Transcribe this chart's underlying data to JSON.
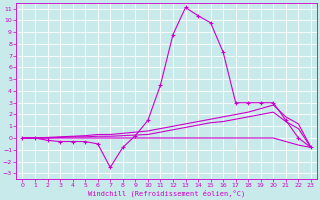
{
  "xlabel": "Windchill (Refroidissement éolien,°C)",
  "bg_color": "#c8eaea",
  "grid_color": "#ffffff",
  "line_color": "#cc00cc",
  "xlim": [
    -0.5,
    23.5
  ],
  "ylim": [
    -3.5,
    11.5
  ],
  "xticks": [
    0,
    1,
    2,
    3,
    4,
    5,
    6,
    7,
    8,
    9,
    10,
    11,
    12,
    13,
    14,
    15,
    16,
    17,
    18,
    19,
    20,
    21,
    22,
    23
  ],
  "yticks": [
    -3,
    -2,
    -1,
    0,
    1,
    2,
    3,
    4,
    5,
    6,
    7,
    8,
    9,
    10,
    11
  ],
  "series": [
    {
      "x": [
        0,
        1,
        2,
        3,
        4,
        5,
        6,
        7,
        8,
        9,
        10,
        11,
        12,
        13,
        14,
        15,
        16,
        17,
        18,
        19,
        20,
        21,
        22,
        23
      ],
      "y": [
        0.0,
        0.0,
        -0.2,
        -0.3,
        -0.3,
        -0.3,
        -0.5,
        -2.5,
        -0.8,
        0.2,
        1.5,
        4.5,
        8.8,
        11.1,
        10.4,
        9.8,
        7.3,
        3.0,
        3.0,
        3.0,
        3.0,
        1.5,
        0.0,
        -0.8
      ],
      "marker": true
    },
    {
      "x": [
        0,
        1,
        2,
        3,
        4,
        5,
        6,
        7,
        8,
        9,
        10,
        11,
        12,
        13,
        14,
        15,
        16,
        17,
        18,
        19,
        20,
        21,
        22,
        23
      ],
      "y": [
        0.0,
        0.0,
        0.05,
        0.1,
        0.15,
        0.2,
        0.3,
        0.3,
        0.4,
        0.5,
        0.6,
        0.8,
        1.0,
        1.2,
        1.4,
        1.6,
        1.8,
        2.0,
        2.2,
        2.5,
        2.8,
        1.8,
        1.2,
        -0.8
      ],
      "marker": false
    },
    {
      "x": [
        0,
        1,
        2,
        3,
        4,
        5,
        6,
        7,
        8,
        9,
        10,
        11,
        12,
        13,
        14,
        15,
        16,
        17,
        18,
        19,
        20,
        21,
        22,
        23
      ],
      "y": [
        0.0,
        0.0,
        0.0,
        0.05,
        0.1,
        0.1,
        0.15,
        0.15,
        0.2,
        0.25,
        0.3,
        0.5,
        0.7,
        0.9,
        1.1,
        1.3,
        1.4,
        1.6,
        1.8,
        2.0,
        2.2,
        1.4,
        0.8,
        -0.8
      ],
      "marker": false
    },
    {
      "x": [
        0,
        1,
        2,
        3,
        4,
        5,
        6,
        7,
        8,
        9,
        10,
        11,
        12,
        13,
        14,
        15,
        16,
        17,
        18,
        19,
        20,
        21,
        22,
        23
      ],
      "y": [
        0.0,
        0.0,
        0.0,
        0.0,
        0.0,
        0.0,
        0.0,
        0.0,
        0.0,
        0.0,
        0.0,
        0.0,
        0.0,
        0.0,
        0.0,
        0.0,
        0.0,
        0.0,
        0.0,
        0.0,
        0.0,
        -0.3,
        -0.6,
        -0.8
      ],
      "marker": false
    }
  ]
}
